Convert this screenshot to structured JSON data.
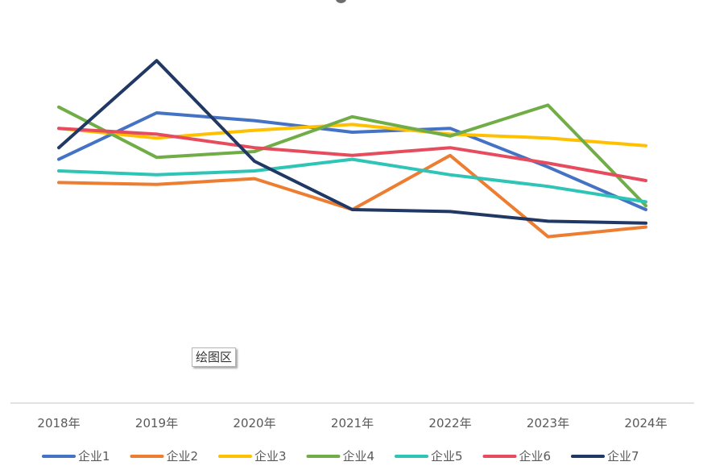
{
  "chart_data": {
    "type": "line",
    "categories": [
      "2018年",
      "2019年",
      "2020年",
      "2021年",
      "2022年",
      "2023年",
      "2024年"
    ],
    "series": [
      {
        "name": "企业1",
        "color": "#4472C4",
        "values": [
          63,
          75,
          73,
          70,
          71,
          61,
          50
        ]
      },
      {
        "name": "企业2",
        "color": "#ED7D31",
        "values": [
          57,
          56.5,
          58,
          50,
          64,
          43,
          45.5
        ]
      },
      {
        "name": "企业3",
        "color": "#FFC000",
        "values": [
          71,
          68.5,
          70.5,
          72,
          69.5,
          68.5,
          66.5
        ]
      },
      {
        "name": "企业4",
        "color": "#70AD47",
        "values": [
          76.5,
          63.5,
          65,
          74,
          69,
          77,
          51
        ]
      },
      {
        "name": "企业5",
        "color": "#2EC4B6",
        "values": [
          60,
          59,
          60,
          63,
          59,
          56,
          52
        ]
      },
      {
        "name": "企业6",
        "color": "#E64C5E",
        "values": [
          71,
          69.5,
          66,
          64,
          66,
          62,
          57.5
        ]
      },
      {
        "name": "企业7",
        "color": "#203864",
        "values": [
          66,
          88.5,
          62.5,
          50,
          49.5,
          47,
          46.5
        ]
      }
    ],
    "ylim": [
      0,
      100
    ],
    "grid": false,
    "legend_position": "bottom",
    "axis_color": "#D9D9D9"
  },
  "tooltip": {
    "text": "绘图区"
  }
}
